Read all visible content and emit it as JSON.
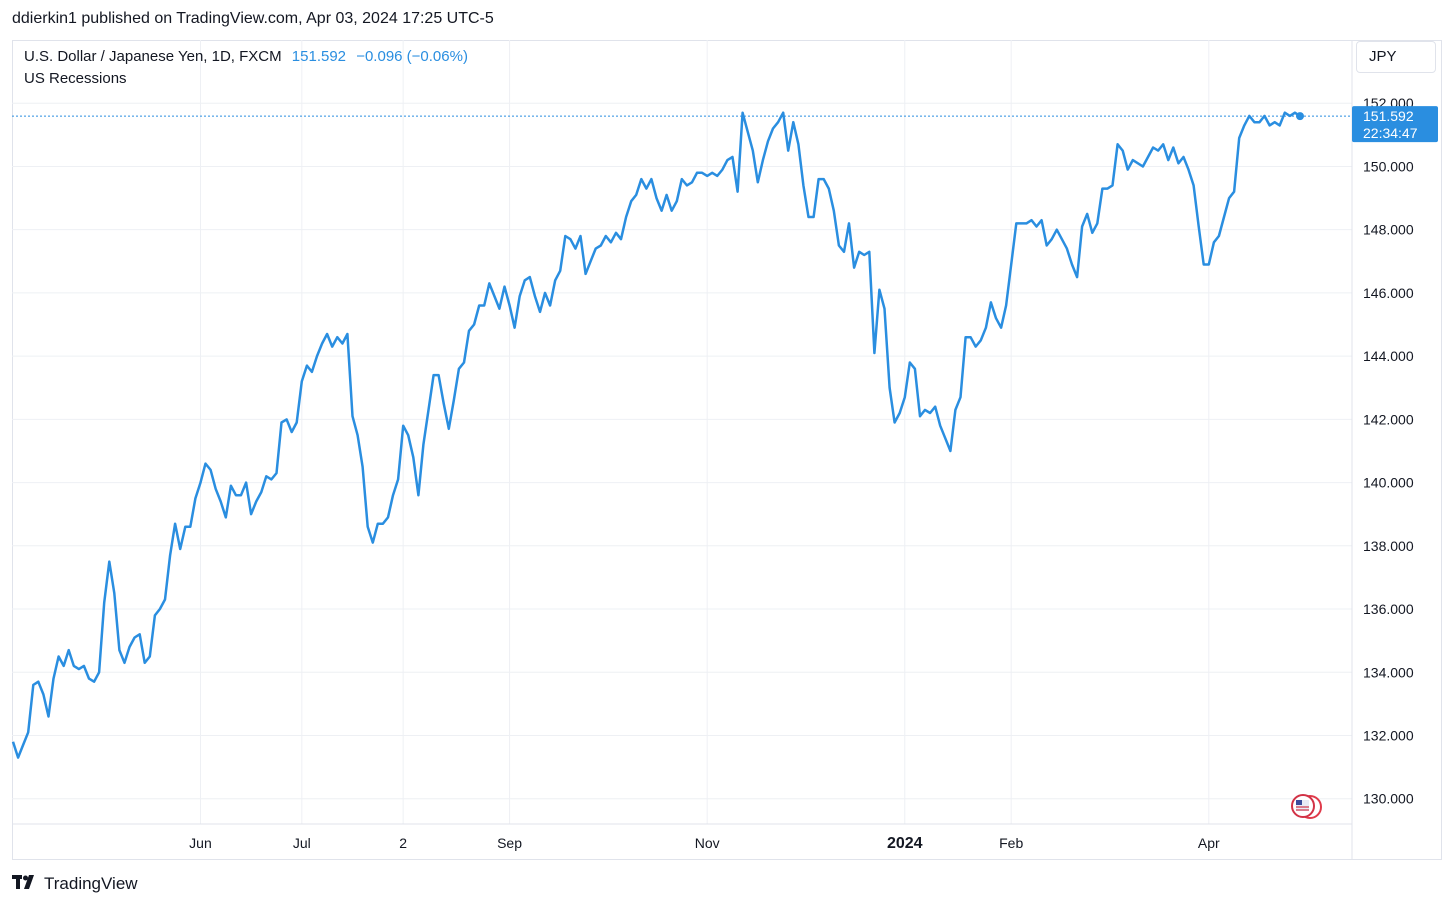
{
  "header": {
    "publish_line": "ddierkin1 published on TradingView.com, Apr 03, 2024 17:25 UTC-5"
  },
  "legend": {
    "symbol": "U.S. Dollar / Japanese Yen, 1D, FXCM",
    "last": "151.592",
    "change": "−0.096 (−0.06%)",
    "indicator": "US Recessions"
  },
  "currency_button": "JPY",
  "price_tag": {
    "price": "151.592",
    "countdown": "22:34:47"
  },
  "footer": {
    "brand": "TradingView"
  },
  "colors": {
    "line": "#2a8ee0",
    "grid": "#eef0f4",
    "text": "#131722"
  },
  "chart_data": {
    "type": "line",
    "title": "U.S. Dollar / Japanese Yen, 1D, FXCM",
    "ylim": [
      129.2,
      154.0
    ],
    "grid": true,
    "y_ticks": [
      130,
      132,
      134,
      136,
      138,
      140,
      142,
      144,
      146,
      148,
      150,
      152
    ],
    "y_tick_labels": [
      "130.000",
      "132.000",
      "134.000",
      "136.000",
      "138.000",
      "140.000",
      "142.000",
      "144.000",
      "146.000",
      "148.000",
      "150.000",
      "152.000"
    ],
    "x_ticks": [
      {
        "label": "Jun",
        "index": 37,
        "bold": false
      },
      {
        "label": "Jul",
        "index": 57,
        "bold": false
      },
      {
        "label": "2",
        "index": 77,
        "bold": false
      },
      {
        "label": "Sep",
        "index": 98,
        "bold": false
      },
      {
        "label": "Nov",
        "index": 137,
        "bold": false
      },
      {
        "label": "2024",
        "index": 176,
        "bold": true
      },
      {
        "label": "Feb",
        "index": 197,
        "bold": false
      },
      {
        "label": "Apr",
        "index": 236,
        "bold": false
      }
    ],
    "series": [
      {
        "values": [
          131.8,
          131.3,
          131.7,
          132.1,
          133.6,
          133.7,
          133.3,
          132.6,
          133.8,
          134.5,
          134.2,
          134.7,
          134.2,
          134.1,
          134.2,
          133.8,
          133.7,
          134.0,
          136.2,
          137.5,
          136.5,
          134.7,
          134.3,
          134.8,
          135.1,
          135.2,
          134.3,
          134.5,
          135.8,
          136.0,
          136.3,
          137.7,
          138.7,
          137.9,
          138.6,
          138.6,
          139.5,
          140.0,
          140.6,
          140.4,
          139.8,
          139.4,
          138.9,
          139.9,
          139.6,
          139.6,
          140.0,
          139.0,
          139.4,
          139.7,
          140.2,
          140.1,
          140.3,
          141.9,
          142.0,
          141.6,
          141.9,
          143.2,
          143.7,
          143.5,
          144.0,
          144.4,
          144.7,
          144.3,
          144.6,
          144.4,
          144.7,
          142.1,
          141.5,
          140.5,
          138.6,
          138.1,
          138.7,
          138.7,
          138.9,
          139.6,
          140.1,
          141.8,
          141.5,
          140.8,
          139.6,
          141.2,
          142.3,
          143.4,
          143.4,
          142.5,
          141.7,
          142.6,
          143.6,
          143.8,
          144.8,
          145.0,
          145.6,
          145.6,
          146.3,
          145.9,
          145.5,
          146.2,
          145.6,
          144.9,
          145.9,
          146.4,
          146.5,
          145.9,
          145.4,
          146.0,
          145.6,
          146.4,
          146.7,
          147.8,
          147.7,
          147.4,
          147.8,
          146.6,
          147.0,
          147.4,
          147.5,
          147.8,
          147.6,
          147.9,
          147.7,
          148.4,
          148.9,
          149.1,
          149.6,
          149.3,
          149.6,
          149.0,
          148.6,
          149.1,
          148.6,
          148.9,
          149.6,
          149.4,
          149.5,
          149.8,
          149.8,
          149.7,
          149.8,
          149.7,
          149.9,
          150.2,
          150.3,
          149.2,
          151.7,
          151.1,
          150.5,
          149.5,
          150.2,
          150.8,
          151.2,
          151.4,
          151.7,
          150.5,
          151.4,
          150.7,
          149.4,
          148.4,
          148.4,
          149.6,
          149.6,
          149.3,
          148.6,
          147.5,
          147.3,
          148.2,
          146.8,
          147.3,
          147.2,
          147.3,
          144.1,
          146.1,
          145.5,
          143.0,
          141.9,
          142.2,
          142.7,
          143.8,
          143.6,
          142.1,
          142.3,
          142.2,
          142.4,
          141.8,
          141.4,
          141.0,
          142.3,
          142.7,
          144.6,
          144.6,
          144.3,
          144.5,
          144.9,
          145.7,
          145.2,
          144.9,
          145.6,
          146.9,
          148.2,
          148.2,
          148.2,
          148.3,
          148.1,
          148.3,
          147.5,
          147.7,
          148.0,
          147.7,
          147.4,
          146.9,
          146.5,
          148.1,
          148.5,
          147.9,
          148.2,
          149.3,
          149.3,
          149.4,
          150.7,
          150.5,
          149.9,
          150.2,
          150.1,
          150.0,
          150.3,
          150.6,
          150.5,
          150.7,
          150.2,
          150.6,
          150.1,
          150.3,
          149.9,
          149.4,
          148.1,
          146.9,
          146.9,
          147.6,
          147.8,
          148.4,
          149.0,
          149.2,
          150.9,
          151.3,
          151.6,
          151.4,
          151.4,
          151.6,
          151.3,
          151.4,
          151.3,
          151.7,
          151.6,
          151.7,
          151.592
        ]
      }
    ]
  }
}
